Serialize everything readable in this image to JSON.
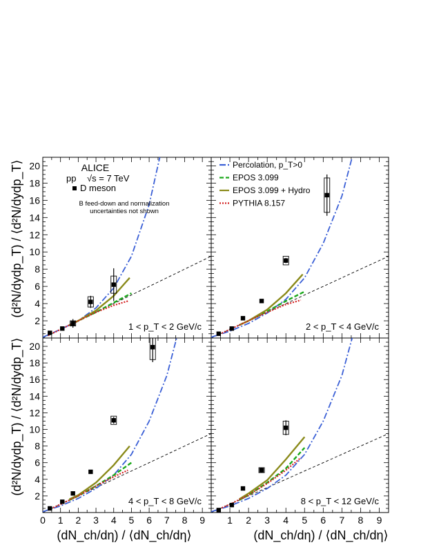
{
  "figure": {
    "experiment": "ALICE",
    "system": "pp",
    "sqrt_s_symbol": "√s = 7 TeV",
    "marker_label": "D meson",
    "note_line1": "B feed-down and normalization",
    "note_line2": "uncertainties not shown",
    "y_label_top": "(d²N/dydp_T) / ⟨d²N/dydp_T⟩",
    "y_label_bottom": "(d²N/dydp_T) / ⟨d²N/dydp_T⟩",
    "x_label_left": "(dN_ch/dη) / ⟨dN_ch/dη⟩",
    "x_label_right": "(dN_ch/dη) / ⟨dN_ch/dη⟩",
    "legend": [
      {
        "label": "Percolation, p_T>0",
        "color": "#3a5fd6",
        "style": "dash-dot"
      },
      {
        "label": "EPOS 3.099",
        "color": "#1aa81a",
        "style": "dashed"
      },
      {
        "label": "EPOS 3.099 + Hydro",
        "color": "#8a8a1a",
        "style": "solid"
      },
      {
        "label": "PYTHIA 8.157",
        "color": "#d42020",
        "style": "dotted"
      }
    ]
  },
  "chart_data": [
    {
      "type": "scatter",
      "panel": "1 < p_T < 2 GeV/c",
      "xlim": [
        0,
        9.5
      ],
      "ylim": [
        0,
        21
      ],
      "x_ticks": [],
      "y_ticks": [
        2,
        4,
        6,
        8,
        10,
        12,
        14,
        16,
        18,
        20
      ],
      "x": [
        0.4,
        1.1,
        1.7,
        2.7,
        4.0
      ],
      "y": [
        0.6,
        1.1,
        1.7,
        4.2,
        6.2
      ],
      "y_err_stat": [
        0.1,
        0.2,
        0.5,
        0.7,
        1.9
      ],
      "y_err_sys": [
        0.1,
        0.2,
        0.3,
        0.6,
        1.0
      ],
      "percolation": {
        "x": [
          0,
          1,
          2,
          3,
          4,
          5,
          6,
          6.6
        ],
        "y": [
          0.1,
          1.0,
          2.0,
          3.5,
          5.8,
          9.5,
          15.5,
          21
        ]
      },
      "epos": {
        "x": [
          1.5,
          2,
          3,
          4,
          5
        ],
        "y": [
          1.5,
          2.0,
          3.0,
          4.1,
          5.2
        ]
      },
      "epos_hydro": {
        "x": [
          1.5,
          2,
          3,
          4,
          4.9
        ],
        "y": [
          1.5,
          2.0,
          3.2,
          4.9,
          7.0
        ]
      },
      "pythia": {
        "x": [
          0.3,
          1,
          2,
          3,
          4,
          4.8
        ],
        "y": [
          0.3,
          1.0,
          2.0,
          3.0,
          3.8,
          4.3
        ]
      },
      "diagonal": {
        "x": [
          0,
          9.5
        ],
        "y": [
          0,
          9.5
        ]
      }
    },
    {
      "type": "scatter",
      "panel": "2 < p_T < 4 GeV/c",
      "xlim": [
        0,
        9.5
      ],
      "ylim": [
        0,
        21
      ],
      "x_ticks": [],
      "y_ticks": [],
      "x": [
        0.4,
        1.1,
        1.7,
        2.7,
        4.0,
        6.2
      ],
      "y": [
        0.5,
        1.1,
        2.3,
        4.3,
        9.0,
        16.6
      ],
      "y_err_stat": [
        0.1,
        0.1,
        0.2,
        0.2,
        0.3,
        2.4
      ],
      "y_err_sys": [
        0.1,
        0.1,
        0.2,
        0.2,
        0.5,
        2.0
      ],
      "percolation": {
        "x": [
          0,
          1,
          2,
          3,
          4,
          5,
          6,
          7,
          7.55
        ],
        "y": [
          0.1,
          0.8,
          1.7,
          2.9,
          4.5,
          7.0,
          11.0,
          16.5,
          21
        ]
      },
      "epos": {
        "x": [
          1.5,
          2,
          3,
          4,
          5
        ],
        "y": [
          1.5,
          2.0,
          3.1,
          4.3,
          5.4
        ]
      },
      "epos_hydro": {
        "x": [
          1.5,
          2,
          3,
          4,
          4.9
        ],
        "y": [
          1.5,
          2.0,
          3.3,
          5.2,
          7.4
        ]
      },
      "pythia": {
        "x": [
          0.3,
          1,
          2,
          3,
          4,
          4.8
        ],
        "y": [
          0.3,
          1.0,
          2.0,
          3.0,
          3.9,
          4.4
        ]
      },
      "diagonal": {
        "x": [
          0,
          9.5
        ],
        "y": [
          0,
          9.5
        ]
      }
    },
    {
      "type": "scatter",
      "panel": "4 < p_T < 8 GeV/c",
      "xlim": [
        0,
        9.5
      ],
      "ylim": [
        0,
        21
      ],
      "x_ticks": [
        0,
        1,
        2,
        3,
        4,
        5,
        6,
        7,
        8,
        9
      ],
      "y_ticks": [
        2,
        4,
        6,
        8,
        10,
        12,
        14,
        16,
        18,
        20
      ],
      "x": [
        0.4,
        1.1,
        1.7,
        2.7,
        4.0,
        6.2
      ],
      "y": [
        0.5,
        1.3,
        2.3,
        4.9,
        11.1,
        19.9
      ],
      "y_err_stat": [
        0.1,
        0.1,
        0.2,
        0.2,
        0.4,
        1.8
      ],
      "y_err_sys": [
        0.1,
        0.1,
        0.2,
        0.2,
        0.5,
        1.5
      ],
      "percolation": {
        "x": [
          0,
          1,
          2,
          3,
          4,
          5,
          6,
          7,
          7.55
        ],
        "y": [
          0.1,
          0.8,
          1.7,
          2.9,
          4.5,
          7.0,
          11.0,
          16.5,
          21
        ]
      },
      "epos": {
        "x": [
          1.5,
          2,
          3,
          4,
          5
        ],
        "y": [
          1.5,
          2.0,
          3.2,
          4.5,
          6.0
        ]
      },
      "epos_hydro": {
        "x": [
          1.5,
          2,
          3,
          4,
          4.9
        ],
        "y": [
          1.6,
          2.1,
          3.6,
          5.7,
          8.0
        ]
      },
      "pythia": {
        "x": [
          0.3,
          1,
          2,
          3,
          4,
          4.8
        ],
        "y": [
          0.3,
          1.0,
          2.0,
          3.2,
          4.3,
          5.1
        ]
      },
      "diagonal": {
        "x": [
          0,
          9.5
        ],
        "y": [
          0,
          9.5
        ]
      }
    },
    {
      "type": "scatter",
      "panel": "8 < p_T < 12 GeV/c",
      "xlim": [
        0,
        9.5
      ],
      "ylim": [
        0,
        21
      ],
      "x_ticks": [
        1,
        2,
        3,
        4,
        5,
        6,
        7,
        8,
        9
      ],
      "y_ticks": [],
      "x": [
        0.4,
        1.1,
        1.7,
        2.7,
        4.0
      ],
      "y": [
        0.3,
        0.9,
        2.9,
        5.1,
        10.2
      ],
      "y_err_stat": [
        0.1,
        0.1,
        0.2,
        0.3,
        0.9
      ],
      "y_err_sys": [
        0.1,
        0.1,
        0.2,
        0.3,
        0.8
      ],
      "percolation": {
        "x": [
          0,
          1,
          2,
          3,
          4,
          5,
          6,
          7,
          7.55
        ],
        "y": [
          0.1,
          0.8,
          1.7,
          2.9,
          4.5,
          7.0,
          11.0,
          16.5,
          21
        ]
      },
      "epos": {
        "x": [
          1.5,
          2,
          3,
          4,
          5
        ],
        "y": [
          1.5,
          2.1,
          3.6,
          5.3,
          7.8
        ]
      },
      "epos_hydro": {
        "x": [
          1.5,
          2,
          3,
          4,
          5
        ],
        "y": [
          1.6,
          2.3,
          3.9,
          6.4,
          9.1
        ]
      },
      "pythia": {
        "x": [
          0.3,
          1,
          2,
          3,
          4,
          4.8
        ],
        "y": [
          0.3,
          1.0,
          2.1,
          3.5,
          5.1,
          6.6
        ]
      },
      "diagonal": {
        "x": [
          0,
          9.5
        ],
        "y": [
          0,
          9.5
        ]
      }
    }
  ]
}
